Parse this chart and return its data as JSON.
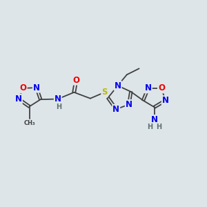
{
  "bg_color": "#dde5e8",
  "atom_colors": {
    "C": "#404040",
    "N": "#0000ee",
    "O": "#ee0000",
    "S": "#bbbb00",
    "H": "#607070"
  },
  "bond_color": "#404040",
  "lw": 1.3,
  "fs": 8.5,
  "fs_sub": 7.0
}
